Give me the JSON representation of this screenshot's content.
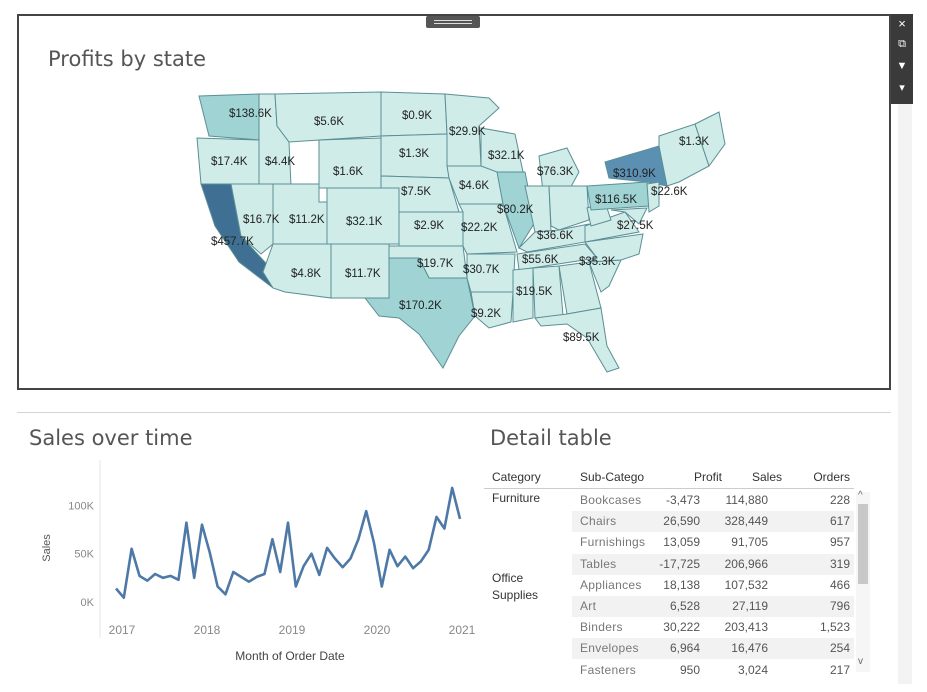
{
  "map_panel": {
    "title": "Profits by state",
    "labels": [
      "$138.6K",
      "$5.6K",
      "$0.9K",
      "$29.9K",
      "$1.3K",
      "$17.4K",
      "$4.4K",
      "$1.6K",
      "$1.3K",
      "$32.1K",
      "$76.3K",
      "$310.9K",
      "$7.5K",
      "$4.6K",
      "$116.5K",
      "$22.6K",
      "$80.2K",
      "$16.7K",
      "$11.2K",
      "$32.1K",
      "$2.9K",
      "$22.2K",
      "$27.5K",
      "$457.7K",
      "$36.6K",
      "$19.7K",
      "$30.7K",
      "$55.6K",
      "$35.3K",
      "$4.8K",
      "$11.7K",
      "$19.5K",
      "$170.2K",
      "$9.2K",
      "$89.5K"
    ]
  },
  "toolbar": {
    "close_icon": "×",
    "popout_icon": "⧉",
    "filter_icon": "▼",
    "more_icon": "▾"
  },
  "line_chart": {
    "title": "Sales over time",
    "chart_data": {
      "type": "line",
      "title": "Sales over time",
      "xlabel": "Month of Order Date",
      "ylabel": "Sales",
      "x_ticks": [
        "2017",
        "2018",
        "2019",
        "2020",
        "2021"
      ],
      "y_ticks": [
        "100K",
        "50K",
        "0K"
      ],
      "ylim": [
        0,
        120000
      ],
      "series": [
        {
          "values": [
            14000,
            4500,
            55000,
            27000,
            22000,
            29000,
            25000,
            27000,
            23000,
            82000,
            25000,
            80000,
            51000,
            16000,
            8000,
            31000,
            26000,
            21000,
            26000,
            29000,
            65000,
            31000,
            82000,
            16000,
            37000,
            50000,
            28000,
            56000,
            45000,
            36000,
            45000,
            65000,
            94000,
            61000,
            16000,
            54000,
            37000,
            47000,
            35000,
            42000,
            54000,
            88000,
            76000,
            118000,
            86000
          ]
        }
      ]
    }
  },
  "detail_table": {
    "title": "Detail table",
    "headers": {
      "category": "Category",
      "sub": "Sub-Catego",
      "profit": "Profit",
      "sales": "Sales",
      "orders": "Orders"
    },
    "categories": {
      "furniture": "Furniture",
      "office": "Office\nSupplies"
    },
    "rows": [
      {
        "sub": "Bookcases",
        "profit": "-3,473",
        "sales": "114,880",
        "orders": "228"
      },
      {
        "sub": "Chairs",
        "profit": "26,590",
        "sales": "328,449",
        "orders": "617"
      },
      {
        "sub": "Furnishings",
        "profit": "13,059",
        "sales": "91,705",
        "orders": "957"
      },
      {
        "sub": "Tables",
        "profit": "-17,725",
        "sales": "206,966",
        "orders": "319"
      },
      {
        "sub": "Appliances",
        "profit": "18,138",
        "sales": "107,532",
        "orders": "466"
      },
      {
        "sub": "Art",
        "profit": "6,528",
        "sales": "27,119",
        "orders": "796"
      },
      {
        "sub": "Binders",
        "profit": "30,222",
        "sales": "203,413",
        "orders": "1,523"
      },
      {
        "sub": "Envelopes",
        "profit": "6,964",
        "sales": "16,476",
        "orders": "254"
      },
      {
        "sub": "Fasteners",
        "profit": "950",
        "sales": "3,024",
        "orders": "217"
      }
    ]
  },
  "colors": {
    "line": "#4e79a7",
    "map_light": "#d3eeec",
    "map_mid": "#9fd3d4",
    "map_dark": "#3f6f92",
    "map_darkest": "#2f5b7e"
  }
}
